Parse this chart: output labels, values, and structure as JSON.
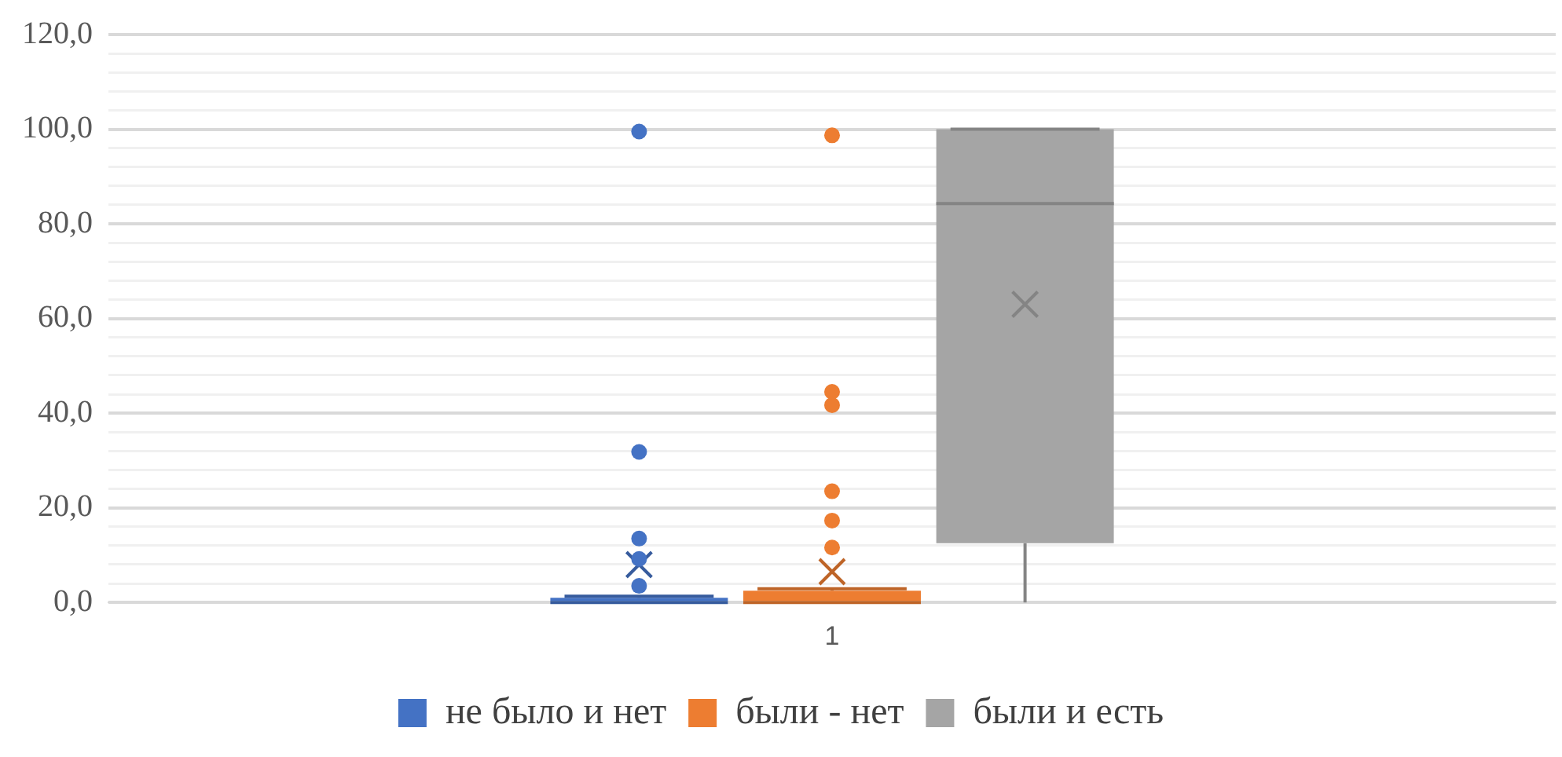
{
  "chart_data": {
    "type": "box",
    "categories": [
      "1"
    ],
    "series": [
      {
        "name": "не было и нет",
        "color": "#4472c4",
        "boxes": [
          {
            "low": 0,
            "q1": 0,
            "median": 0,
            "q3": 1,
            "high": 1.3,
            "mean": 8,
            "outliers": [
              3.5,
              9.2,
              13.5,
              31.8,
              99.5
            ]
          }
        ]
      },
      {
        "name": "были - нет",
        "color": "#ed7d31",
        "boxes": [
          {
            "low": 0,
            "q1": 0,
            "median": 0,
            "q3": 2.5,
            "high": 2.9,
            "mean": 6.5,
            "outliers": [
              11.6,
              17.3,
              23.5,
              41.7,
              44.5,
              98.7
            ]
          }
        ]
      },
      {
        "name": "были и есть",
        "color": "#a5a5a5",
        "boxes": [
          {
            "low": 0,
            "q1": 12.5,
            "median": 84.3,
            "q3": 100,
            "high": 100,
            "mean": 63
          }
        ]
      }
    ],
    "ylim": [
      0,
      120
    ],
    "yticks": [
      {
        "value": 0,
        "label": "0,0"
      },
      {
        "value": 4,
        "label": null
      },
      {
        "value": 8,
        "label": null
      },
      {
        "value": 12,
        "label": null
      },
      {
        "value": 16,
        "label": null
      },
      {
        "value": 20,
        "label": "20,0"
      },
      {
        "value": 24,
        "label": null
      },
      {
        "value": 28,
        "label": null
      },
      {
        "value": 32,
        "label": null
      },
      {
        "value": 36,
        "label": null
      },
      {
        "value": 40,
        "label": "40,0"
      },
      {
        "value": 44,
        "label": null
      },
      {
        "value": 48,
        "label": null
      },
      {
        "value": 52,
        "label": null
      },
      {
        "value": 56,
        "label": null
      },
      {
        "value": 60,
        "label": "60,0"
      },
      {
        "value": 64,
        "label": null
      },
      {
        "value": 68,
        "label": null
      },
      {
        "value": 72,
        "label": null
      },
      {
        "value": 76,
        "label": null
      },
      {
        "value": 80,
        "label": "80,0"
      },
      {
        "value": 84,
        "label": null
      },
      {
        "value": 88,
        "label": null
      },
      {
        "value": 92,
        "label": null
      },
      {
        "value": 96,
        "label": null
      },
      {
        "value": 100,
        "label": "100,0"
      },
      {
        "value": 104,
        "label": null
      },
      {
        "value": 108,
        "label": null
      },
      {
        "value": 112,
        "label": null
      },
      {
        "value": 116,
        "label": null
      },
      {
        "value": 120,
        "label": "120,0"
      }
    ],
    "grid": "y",
    "legend": "bottom",
    "marker": "circle"
  }
}
